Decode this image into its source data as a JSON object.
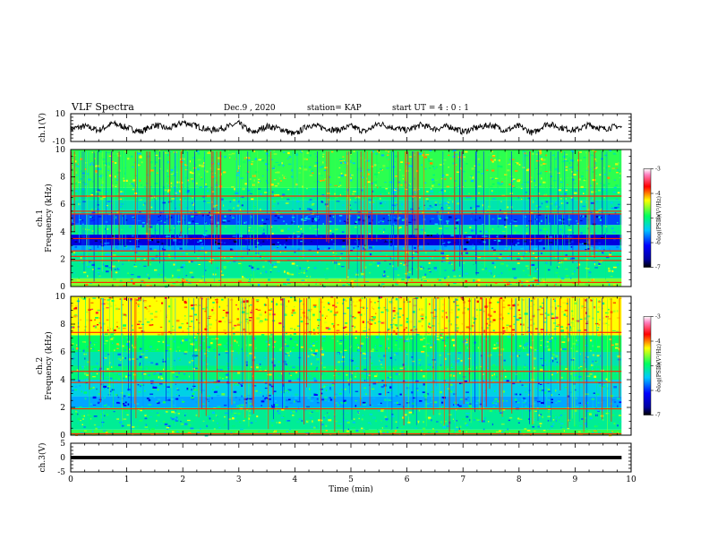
{
  "header": {
    "title": "VLF Spectra",
    "date": "Dec.9 , 2020",
    "station": "station= KAP",
    "start": "start  UT =  4 : 0  : 1"
  },
  "chart_data": [
    {
      "id": "ch1-waveform",
      "type": "line",
      "ylabel": "ch.1(V)",
      "ylim": [
        -10,
        10
      ],
      "yticks": [
        "10",
        "-10"
      ],
      "xlim": [
        0,
        10
      ],
      "x_units": "min",
      "data_extent_x": [
        0,
        9.83
      ],
      "series": [
        {
          "x": [
            0,
            0.25,
            0.5,
            0.75,
            1,
            1.25,
            1.5,
            1.75,
            2,
            2.25,
            2.5,
            2.75,
            3,
            3.25,
            3.5,
            3.75,
            4,
            4.25,
            4.5,
            4.75,
            5,
            5.25,
            5.5,
            5.75,
            6,
            6.25,
            6.5,
            6.75,
            7,
            7.25,
            7.5,
            7.75,
            8,
            8.25,
            8.5,
            8.75,
            9,
            9.25,
            9.5,
            9.75,
            9.83
          ],
          "values": [
            -1,
            1,
            -2,
            3,
            0,
            -3,
            2,
            -1,
            4,
            1,
            -2,
            0,
            3,
            -4,
            1,
            -1,
            -5,
            2,
            0,
            -2,
            1,
            -3,
            3,
            0,
            -2,
            2,
            -1,
            1,
            -3,
            0,
            2,
            -2,
            1,
            -4,
            3,
            0,
            -2,
            2,
            -1,
            1,
            0
          ]
        }
      ]
    },
    {
      "id": "ch1-spectrogram",
      "type": "heatmap",
      "ylabel": "ch.1\nFrequency  (kHz)",
      "ylim": [
        0,
        10
      ],
      "yticks": [
        "0",
        "2",
        "4",
        "6",
        "8",
        "10"
      ],
      "xlim": [
        0,
        10
      ],
      "data_extent_x": [
        0,
        9.83
      ],
      "colorbar": {
        "label": "log(PSD)(V²/Hz)",
        "range": [
          -7,
          -3
        ],
        "ticks": [
          "-3",
          "-4",
          "-5",
          "-6",
          "-7"
        ]
      },
      "frequency_bands": [
        {
          "kHz": [
            0.0,
            0.6
          ],
          "level": -4.6
        },
        {
          "kHz": [
            0.6,
            2.6
          ],
          "level": -5.1
        },
        {
          "kHz": [
            2.6,
            3.0
          ],
          "level": -5.6
        },
        {
          "kHz": [
            3.0,
            3.8
          ],
          "level": -6.3
        },
        {
          "kHz": [
            3.8,
            4.5
          ],
          "level": -5.1
        },
        {
          "kHz": [
            4.5,
            5.3
          ],
          "level": -5.9
        },
        {
          "kHz": [
            5.3,
            6.3
          ],
          "level": -5.2
        },
        {
          "kHz": [
            6.3,
            7.2
          ],
          "level": -5.0
        },
        {
          "kHz": [
            7.2,
            10.0
          ],
          "level": -4.8
        }
      ],
      "lines_kHz": [
        0.3,
        1.9,
        2.2,
        2.6,
        3.5,
        5.3,
        5.5,
        6.6
      ]
    },
    {
      "id": "ch2-spectrogram",
      "type": "heatmap",
      "ylabel": "ch.2\nFrequency  (kHz)",
      "ylim": [
        0,
        10
      ],
      "yticks": [
        "0",
        "2",
        "4",
        "6",
        "8",
        "10"
      ],
      "xlim": [
        0,
        10
      ],
      "data_extent_x": [
        0,
        9.83
      ],
      "colorbar": {
        "label": "log(PSD)(V²/Hz)",
        "range": [
          -7,
          -3
        ],
        "ticks": [
          "-3",
          "-4",
          "-5",
          "-6",
          "-7"
        ]
      },
      "frequency_bands": [
        {
          "kHz": [
            0.0,
            0.4
          ],
          "level": -4.8
        },
        {
          "kHz": [
            0.4,
            2.0
          ],
          "level": -5.1
        },
        {
          "kHz": [
            2.0,
            2.8
          ],
          "level": -5.6
        },
        {
          "kHz": [
            2.8,
            4.0
          ],
          "level": -5.4
        },
        {
          "kHz": [
            4.0,
            5.0
          ],
          "level": -5.0
        },
        {
          "kHz": [
            5.0,
            6.0
          ],
          "level": -5.2
        },
        {
          "kHz": [
            6.0,
            7.2
          ],
          "level": -4.9
        },
        {
          "kHz": [
            7.2,
            10.0
          ],
          "level": -4.3
        }
      ],
      "lines_kHz": [
        0.1,
        1.9,
        3.8,
        4.6,
        7.4
      ]
    },
    {
      "id": "ch3-waveform",
      "type": "line",
      "ylabel": "ch.3(V)",
      "ylim": [
        -5,
        5
      ],
      "yticks": [
        "5",
        "0",
        "-5"
      ],
      "xlim": [
        0,
        10
      ],
      "xlabel": "Time  (min)",
      "xticks": [
        "0",
        "1",
        "2",
        "3",
        "4",
        "5",
        "6",
        "7",
        "8",
        "9",
        "10"
      ],
      "data_extent_x": [
        0,
        9.83
      ],
      "series": [
        {
          "x": [
            0,
            9.83
          ],
          "values": [
            0,
            0
          ],
          "band_halfwidth": 0.6
        }
      ]
    }
  ]
}
